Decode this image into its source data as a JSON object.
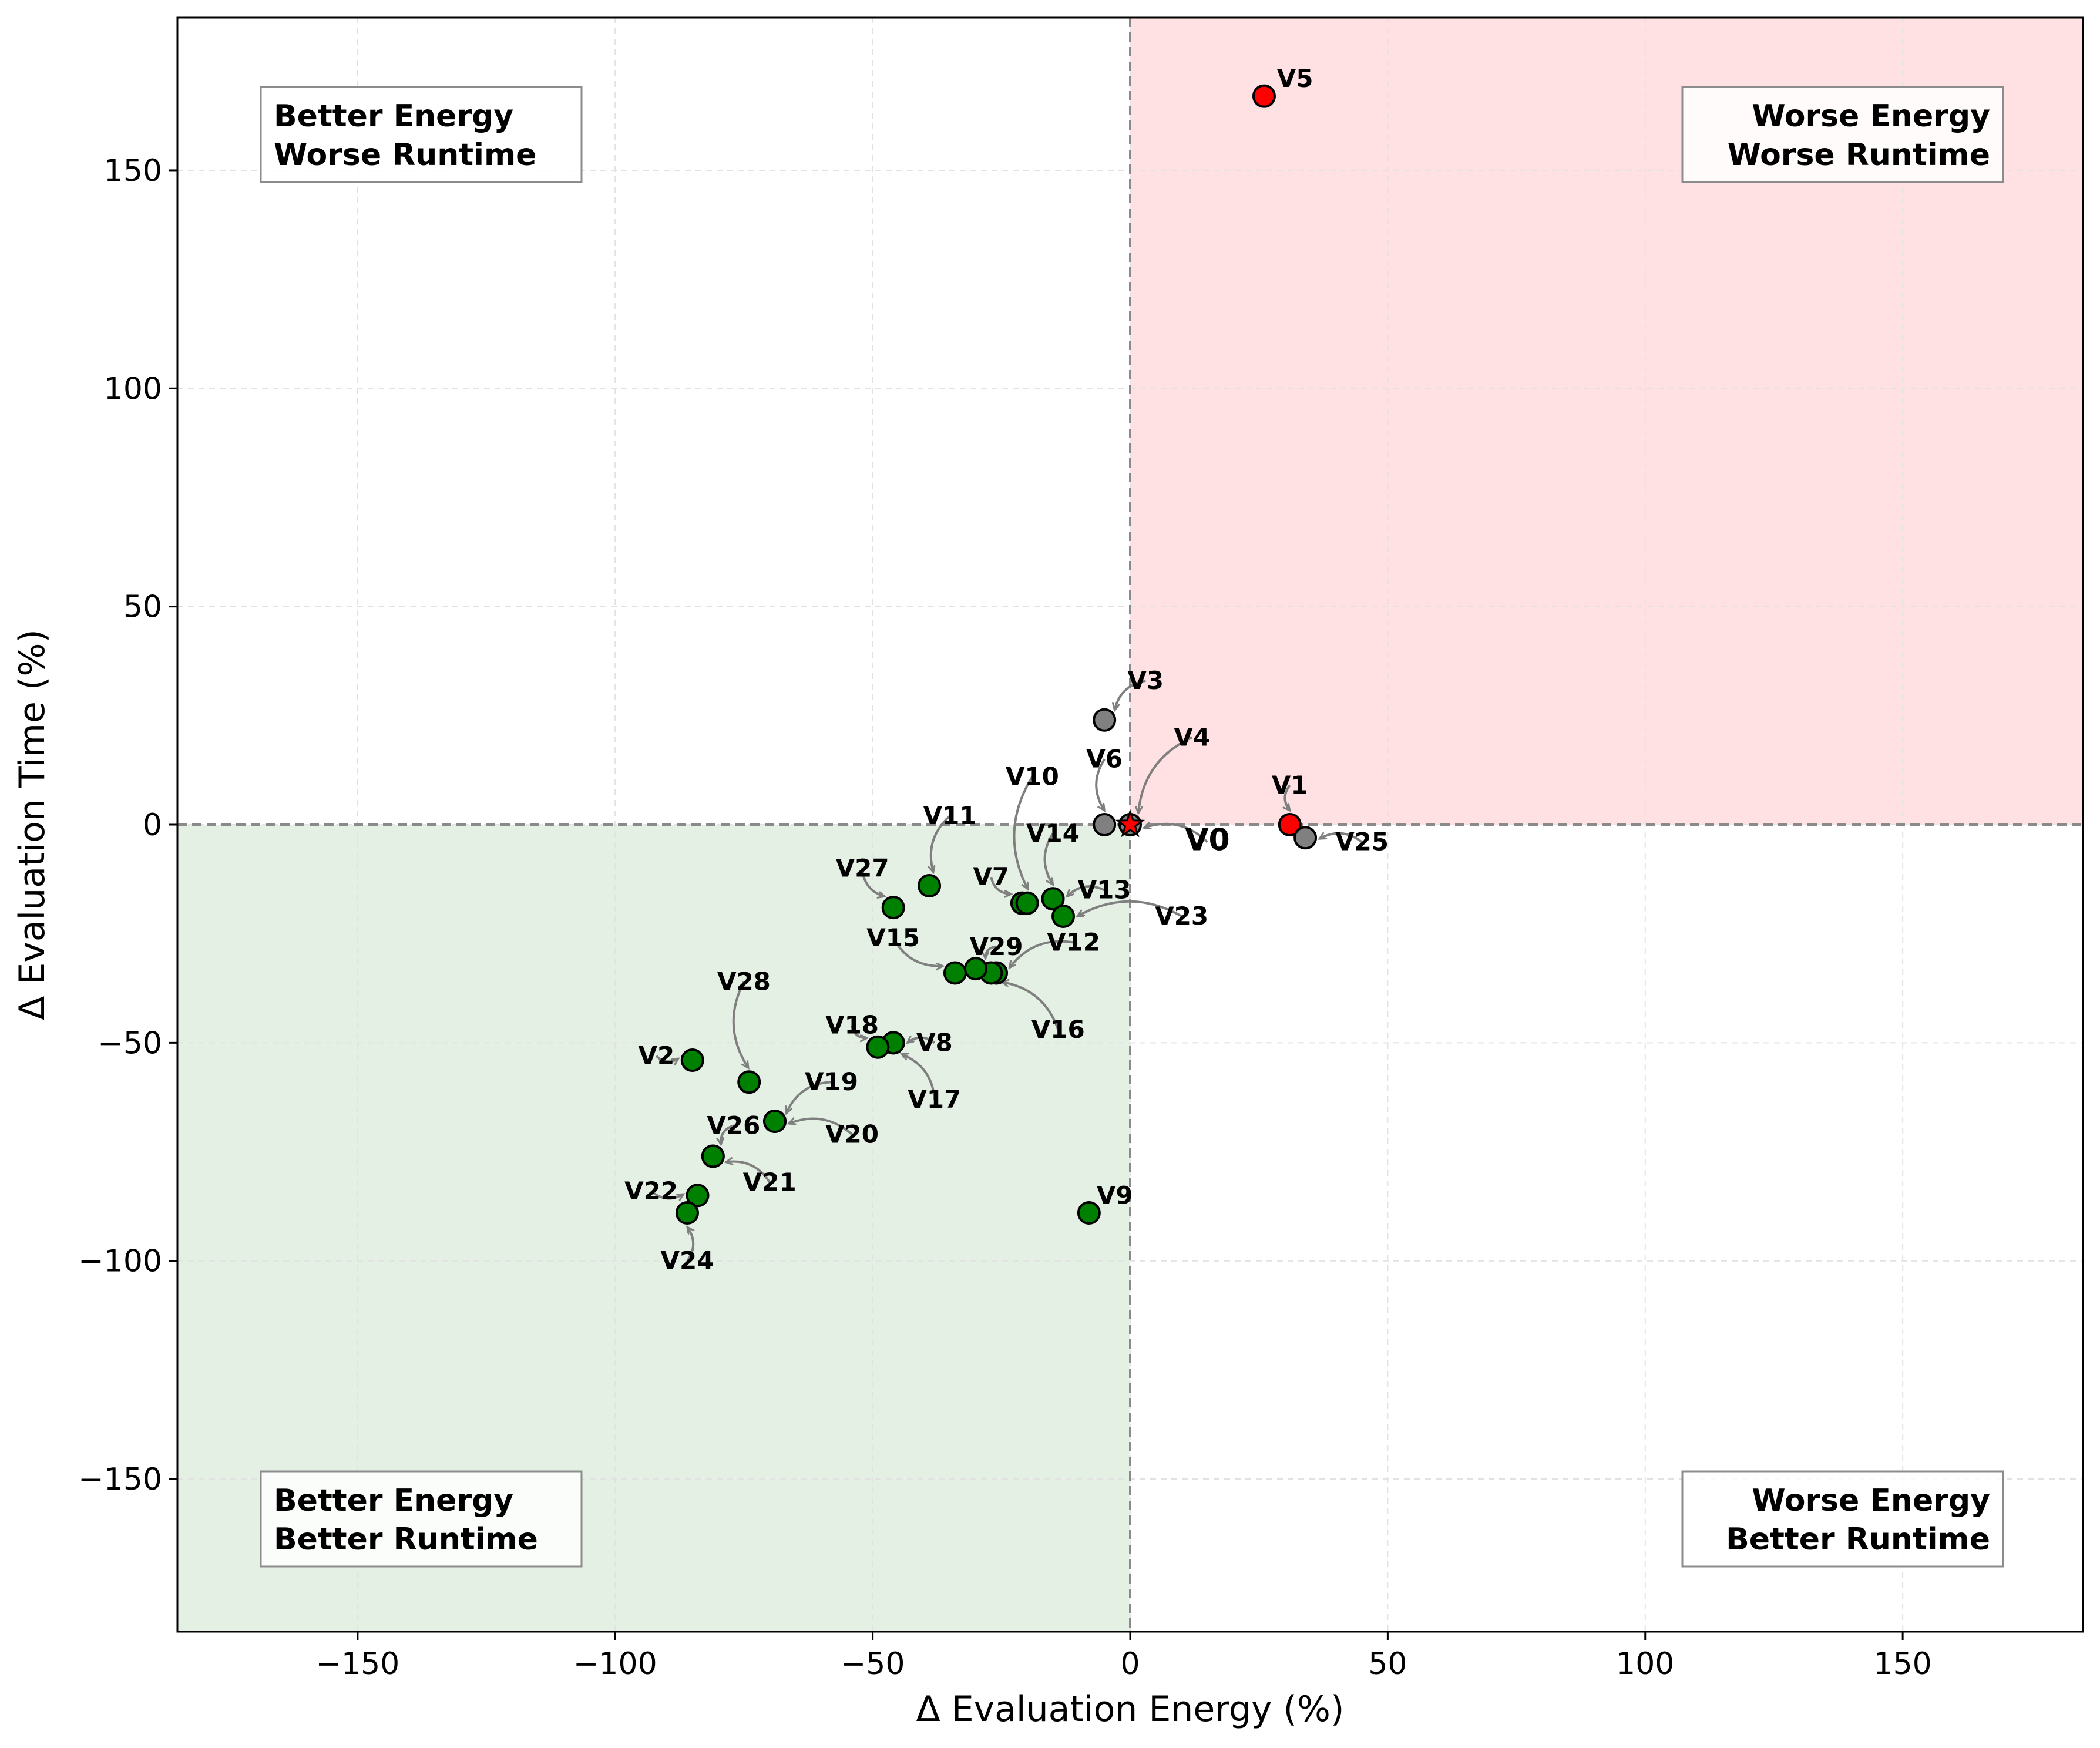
{
  "chart_data": {
    "type": "scatter",
    "title": "",
    "xlabel": "Δ Evaluation Energy (%)",
    "ylabel": "Δ Evaluation Time (%)",
    "xlim": [
      -185,
      185
    ],
    "ylim": [
      -185,
      185
    ],
    "xticks": [
      -150,
      -100,
      -50,
      0,
      50,
      100,
      150
    ],
    "yticks": [
      -150,
      -100,
      -50,
      0,
      50,
      100,
      150
    ],
    "grid": true,
    "colors": {
      "better_both_fill": "#e5f0e5",
      "worse_both_fill": "#ffe1e4",
      "green_point": "#008000",
      "red_point": "#ff0000",
      "gray_point": "#808080",
      "reference_line": "#8a8a8a",
      "arrow": "#7f7f7f"
    },
    "quadrants": [
      {
        "id": "tl",
        "line1": "Better Energy",
        "line2": "Worse Runtime"
      },
      {
        "id": "tr",
        "line1": "Worse Energy",
        "line2": "Worse Runtime"
      },
      {
        "id": "bl",
        "line1": "Better Energy",
        "line2": "Better Runtime"
      },
      {
        "id": "br",
        "line1": "Worse Energy",
        "line2": "Better Runtime"
      }
    ],
    "points": [
      {
        "label": "V0",
        "x": 0,
        "y": 0,
        "color": "red",
        "marker": "star",
        "lx": 15,
        "ly": -4,
        "arrow": true
      },
      {
        "label": "V1",
        "x": 31,
        "y": 0,
        "color": "red",
        "lx": 31,
        "ly": 9,
        "arrow": true
      },
      {
        "label": "V2",
        "x": -85,
        "y": -54,
        "color": "green",
        "lx": -92,
        "ly": -53,
        "arrow": true
      },
      {
        "label": "V3",
        "x": -5,
        "y": 24,
        "color": "gray",
        "lx": 3,
        "ly": 33,
        "arrow": true
      },
      {
        "label": "V4",
        "x": 0,
        "y": 0,
        "color": "gray",
        "lx": 12,
        "ly": 20,
        "arrow": true
      },
      {
        "label": "V5",
        "x": 26,
        "y": 167,
        "color": "red",
        "lx": 32,
        "ly": 171,
        "arrow": false
      },
      {
        "label": "V6",
        "x": -5,
        "y": 0,
        "color": "gray",
        "lx": -5,
        "ly": 15,
        "arrow": true
      },
      {
        "label": "V7",
        "x": -21,
        "y": -18,
        "color": "green",
        "lx": -27,
        "ly": -12,
        "arrow": true
      },
      {
        "label": "V8",
        "x": -46,
        "y": -50,
        "color": "green",
        "lx": -38,
        "ly": -50,
        "arrow": true
      },
      {
        "label": "V9",
        "x": -8,
        "y": -89,
        "color": "green",
        "lx": -3,
        "ly": -85,
        "arrow": false
      },
      {
        "label": "V10",
        "x": -20,
        "y": -18,
        "color": "green",
        "lx": -19,
        "ly": 11,
        "arrow": true
      },
      {
        "label": "V11",
        "x": -39,
        "y": -14,
        "color": "green",
        "lx": -35,
        "ly": 2,
        "arrow": true
      },
      {
        "label": "V12",
        "x": -26,
        "y": -34,
        "color": "green",
        "lx": -11,
        "ly": -27,
        "arrow": true
      },
      {
        "label": "V13",
        "x": -15,
        "y": -17,
        "color": "green",
        "lx": -5,
        "ly": -15,
        "arrow": true
      },
      {
        "label": "V14",
        "x": -15,
        "y": -17,
        "color": "green",
        "lx": -15,
        "ly": -2,
        "arrow": true
      },
      {
        "label": "V15",
        "x": -34,
        "y": -34,
        "color": "green",
        "lx": -46,
        "ly": -26,
        "arrow": true
      },
      {
        "label": "V16",
        "x": -27,
        "y": -34,
        "color": "green",
        "lx": -14,
        "ly": -47,
        "arrow": true
      },
      {
        "label": "V17",
        "x": -46,
        "y": -50,
        "color": "green",
        "lx": -38,
        "ly": -63,
        "arrow": true
      },
      {
        "label": "V18",
        "x": -49,
        "y": -51,
        "color": "green",
        "lx": -54,
        "ly": -46,
        "arrow": true
      },
      {
        "label": "V19",
        "x": -69,
        "y": -68,
        "color": "green",
        "lx": -58,
        "ly": -59,
        "arrow": true
      },
      {
        "label": "V20",
        "x": -69,
        "y": -68,
        "color": "green",
        "lx": -54,
        "ly": -71,
        "arrow": true
      },
      {
        "label": "V21",
        "x": -81,
        "y": -76,
        "color": "green",
        "lx": -70,
        "ly": -82,
        "arrow": true
      },
      {
        "label": "V22",
        "x": -84,
        "y": -85,
        "color": "green",
        "lx": -93,
        "ly": -84,
        "arrow": true
      },
      {
        "label": "V23",
        "x": -13,
        "y": -21,
        "color": "green",
        "lx": 10,
        "ly": -21,
        "arrow": true
      },
      {
        "label": "V24",
        "x": -86,
        "y": -89,
        "color": "green",
        "lx": -86,
        "ly": -100,
        "arrow": true
      },
      {
        "label": "V25",
        "x": 34,
        "y": -3,
        "color": "gray",
        "lx": 45,
        "ly": -4,
        "arrow": true
      },
      {
        "label": "V26",
        "x": -81,
        "y": -76,
        "color": "green",
        "lx": -77,
        "ly": -69,
        "arrow": true
      },
      {
        "label": "V27",
        "x": -46,
        "y": -19,
        "color": "green",
        "lx": -52,
        "ly": -10,
        "arrow": true
      },
      {
        "label": "V28",
        "x": -74,
        "y": -59,
        "color": "green",
        "lx": -75,
        "ly": -36,
        "arrow": true
      },
      {
        "label": "V29",
        "x": -30,
        "y": -33,
        "color": "green",
        "lx": -26,
        "ly": -28,
        "arrow": true
      }
    ]
  }
}
